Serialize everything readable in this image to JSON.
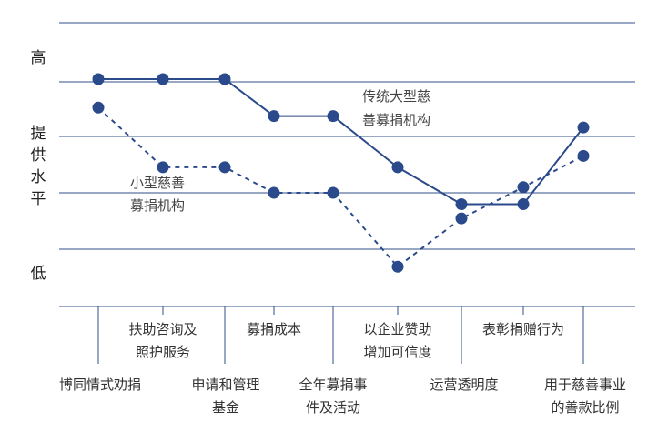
{
  "chart_data": {
    "type": "line",
    "y_labels": {
      "high": "高",
      "provision": [
        "提",
        "供",
        "水",
        "平"
      ],
      "low": "低"
    },
    "categories": [
      "博同情式劝捐",
      "扶助咨询及照护服务",
      "申请和管理基金",
      "募捐成本",
      "全年募捐事件及活动",
      "以企业赞助增加可信度",
      "运营透明度",
      "表彰捐赠行为",
      "用于慈善事业的善款比例"
    ],
    "category_lines": [
      [
        "博同情式劝捐"
      ],
      [
        "扶助咨询及",
        "照护服务"
      ],
      [
        "申请和管理",
        "基金"
      ],
      [
        "募捐成本"
      ],
      [
        "全年募捐事",
        "件及活动"
      ],
      [
        "以企业赞助",
        "增加可信度"
      ],
      [
        "运营透明度"
      ],
      [
        "表彰捐赠行为"
      ],
      [
        "用于慈善事业",
        "的善款比例"
      ]
    ],
    "ylim": [
      0,
      5
    ],
    "grid": true,
    "series": [
      {
        "name": "传统大型慈善募捐机构",
        "name_lines": [
          "传统大型慈",
          "善募捐机构"
        ],
        "style": "solid",
        "color": "#2b4a8b",
        "values": [
          4.0,
          4.0,
          4.0,
          3.35,
          3.35,
          2.45,
          1.8,
          1.8,
          3.15
        ]
      },
      {
        "name": "小型慈善募捐机构",
        "name_lines": [
          "小型慈善",
          "募捐机构"
        ],
        "style": "dashed",
        "color": "#2b4a8b",
        "values": [
          3.5,
          2.45,
          2.45,
          2.0,
          2.0,
          0.7,
          1.55,
          2.1,
          2.65
        ]
      }
    ]
  }
}
